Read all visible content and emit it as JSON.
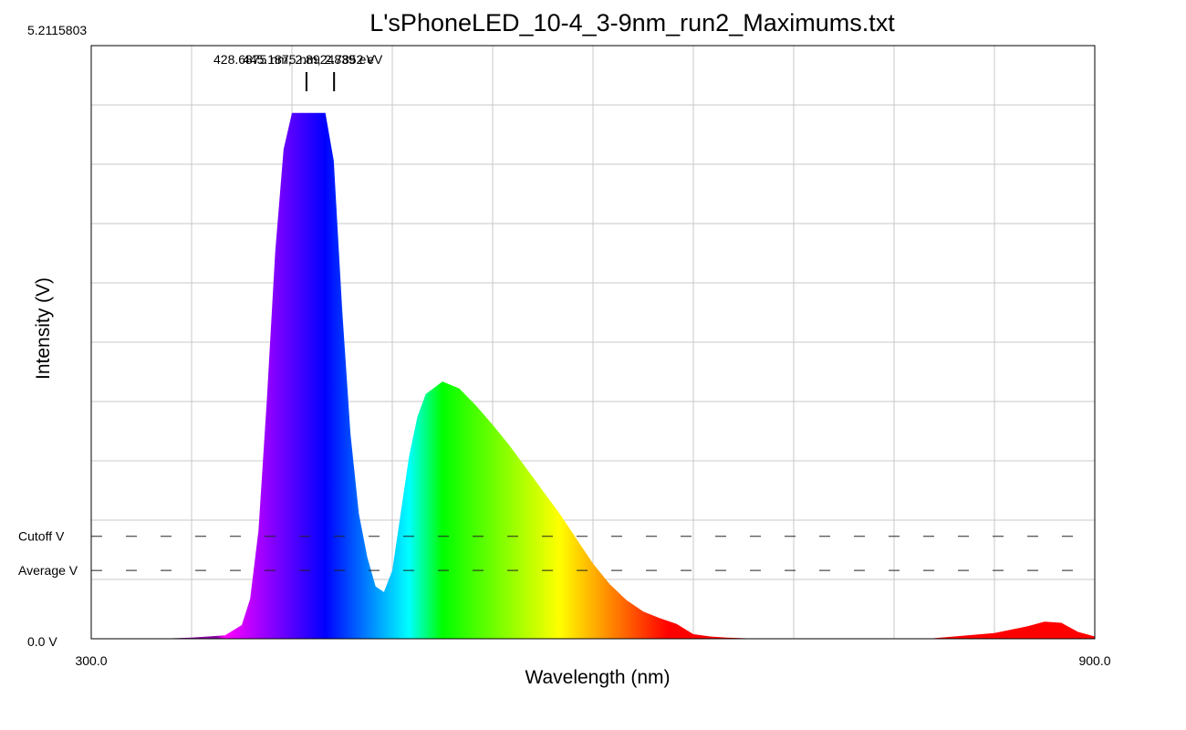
{
  "chart_data": {
    "type": "area",
    "title": "L'sPhoneLED_10-4_3-9nm_run2_Maximums.txt",
    "xlabel": "Wavelength (nm)",
    "ylabel": "Intensity (V)",
    "xlim": [
      300.0,
      900.0
    ],
    "ylim": [
      0.0,
      5.2115803
    ],
    "x_tick_labels": [
      "300.0",
      "900.0"
    ],
    "y_tick_labels": {
      "top": "5.2115803",
      "bottom": "0.0 V"
    },
    "grid": true,
    "fill": "visible-spectrum color gradient by wavelength",
    "series": [
      {
        "x": [
          300,
          340,
          360,
          380,
          390,
          395,
          400,
          405,
          410,
          415,
          420,
          425,
          428,
          432,
          437,
          440,
          445,
          450,
          455,
          460,
          465,
          470,
          475,
          480,
          485,
          490,
          495,
          500,
          510,
          520,
          530,
          540,
          550,
          560,
          570,
          580,
          590,
          600,
          610,
          620,
          630,
          640,
          650,
          660,
          670,
          680,
          690,
          700,
          720,
          750,
          800,
          840,
          860,
          870,
          880,
          890,
          900
        ],
        "y": [
          0.0,
          0.0,
          0.01,
          0.03,
          0.12,
          0.35,
          0.95,
          2.1,
          3.4,
          4.3,
          4.62,
          4.62,
          4.62,
          4.62,
          4.62,
          4.62,
          4.2,
          2.9,
          1.8,
          1.1,
          0.72,
          0.46,
          0.41,
          0.6,
          1.1,
          1.6,
          1.95,
          2.15,
          2.26,
          2.2,
          2.05,
          1.88,
          1.7,
          1.5,
          1.3,
          1.1,
          0.88,
          0.66,
          0.48,
          0.34,
          0.24,
          0.18,
          0.13,
          0.04,
          0.02,
          0.01,
          0.005,
          0.0,
          0.0,
          0.0,
          0.0,
          0.05,
          0.11,
          0.15,
          0.14,
          0.06,
          0.02
        ]
      }
    ],
    "reference_lines": [
      {
        "label": "Cutoff V",
        "y": 0.9
      },
      {
        "label": "Average V",
        "y": 0.6
      }
    ],
    "peak_annotations": {
      "text": "428.6875 nm, 2.8924839 eV",
      "overlapping_text": "445.1875 nm, 2.7852 eV",
      "markers_x": [
        428.6875,
        445.1875
      ]
    }
  },
  "colors": {
    "grid": "#c8c8c8",
    "axes": "#000000",
    "dash": "#222222"
  }
}
